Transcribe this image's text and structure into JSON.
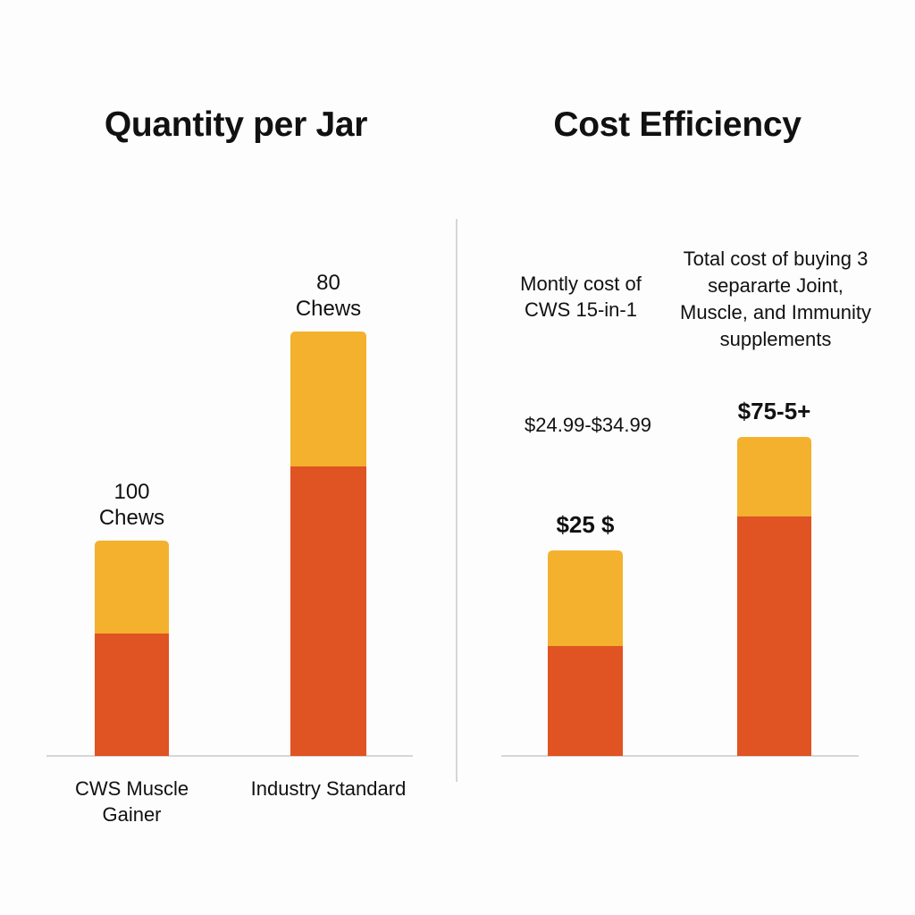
{
  "colors": {
    "lower_segment": "#e05322",
    "upper_segment": "#f4b12e",
    "axis": "#c9c9c9",
    "divider": "#c9c9c9",
    "text": "#111111"
  },
  "chart_data": [
    {
      "type": "bar",
      "stacked": true,
      "title": "Quantity per Jar",
      "xlabel": "",
      "ylabel": "",
      "ylim": [
        0,
        500
      ],
      "grid": false,
      "categories": [
        "CWS Muscle Gainer",
        "Industry Standard"
      ],
      "category_lines": [
        [
          "CWS Muscle",
          "Gainer"
        ],
        [
          "Industry Standard"
        ]
      ],
      "series": [
        {
          "name": "lower",
          "color": "#e05322",
          "values": [
            137,
            324
          ]
        },
        {
          "name": "upper",
          "color": "#f4b12e",
          "values": [
            104,
            151
          ]
        }
      ],
      "data_labels": [
        {
          "lines": [
            "100",
            "Chews"
          ]
        },
        {
          "lines": [
            "80",
            "Chews"
          ]
        }
      ]
    },
    {
      "type": "bar",
      "stacked": true,
      "title": "Cost Efficiency",
      "xlabel": "",
      "ylabel": "",
      "ylim": [
        0,
        500
      ],
      "grid": false,
      "categories": [
        "Montly cost of CWS 15-in-1",
        "Total cost of buying 3 separarte Joint, Muscle, and Immunity supplements"
      ],
      "category_lines": [
        [
          "Montly cost of",
          "CWS 15-in-1"
        ],
        [
          "Total cost of buying 3",
          "separarte Joint,",
          "Muscle, and Immunity",
          "supplements"
        ]
      ],
      "price_range": "$24.99-$34.99",
      "series": [
        {
          "name": "lower",
          "color": "#e05322",
          "values": [
            123,
            268
          ]
        },
        {
          "name": "upper",
          "color": "#f4b12e",
          "values": [
            107,
            89
          ]
        }
      ],
      "data_labels": [
        {
          "lines": [
            "$25 $"
          ]
        },
        {
          "lines": [
            "$75-5+"
          ]
        }
      ]
    }
  ]
}
